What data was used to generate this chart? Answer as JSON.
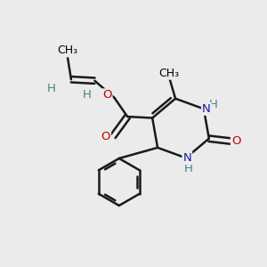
{
  "background_color": "#ebebeb",
  "atom_colors": {
    "C": "#000000",
    "H": "#4a8080",
    "N": "#1818b0",
    "O": "#c00000"
  },
  "bond_color": "#1a1a1a",
  "bond_width": 1.8,
  "font_size_main": 9.5,
  "font_size_small": 8.5
}
